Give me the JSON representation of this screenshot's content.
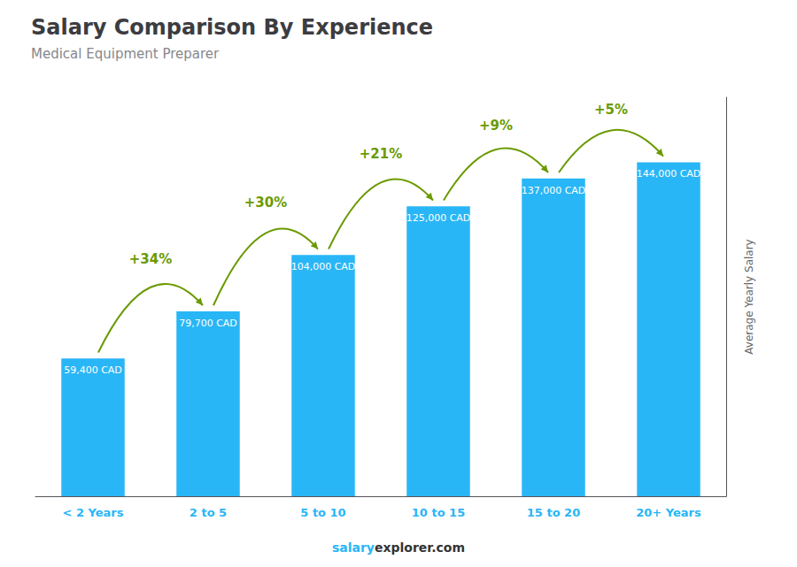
{
  "chart_data": {
    "type": "bar",
    "title": "Salary Comparison By Experience",
    "subtitle": "Medical Equipment Preparer",
    "ylabel": "Average Yearly Salary",
    "categories": [
      "< 2 Years",
      "2 to 5",
      "5 to 10",
      "10 to 15",
      "15 to 20",
      "20+ Years"
    ],
    "values": [
      59400,
      79700,
      104000,
      125000,
      137000,
      144000
    ],
    "value_labels": [
      "59,400 CAD",
      "79,700 CAD",
      "104,000 CAD",
      "125,000 CAD",
      "137,000 CAD",
      "144,000 CAD"
    ],
    "data_labels": true,
    "annotations": [
      "+34%",
      "+30%",
      "+21%",
      "+9%",
      "+5%"
    ],
    "footer": [
      "salary",
      "explorer.com"
    ],
    "color": "#29B6F6",
    "ylim": [
      0,
      172000
    ],
    "tick_labels": "x",
    "grid": false
  }
}
